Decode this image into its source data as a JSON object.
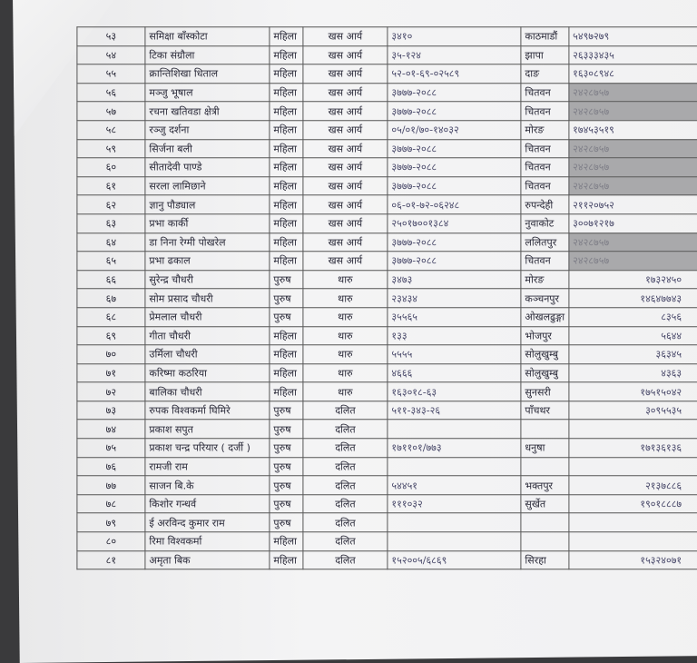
{
  "colors": {
    "shaded_cell": "#a9a9ab",
    "paper": "#f1f1f2"
  },
  "rows": [
    {
      "sn": "५३",
      "name": "समिक्षा  बाँस्कोटा",
      "gender": "महिला",
      "caste": "खस आर्य",
      "id": "३४१०",
      "district": "काठमाडौं",
      "phone": "५४९७२७९",
      "shaded": false
    },
    {
      "sn": "५४",
      "name": "टिका संग्रौला",
      "gender": "महिला",
      "caste": "खस आर्य",
      "id": "३५-१२४",
      "district": "झापा",
      "phone": "२६३३३४३५",
      "shaded": false
    },
    {
      "sn": "५५",
      "name": "क्रान्तिशिखा धिताल",
      "gender": "महिला",
      "caste": "खस आर्य",
      "id": "५२-०१-६९-०२५८९",
      "district": "दाङ",
      "phone": "१६३०८९४८",
      "shaded": false
    },
    {
      "sn": "५६",
      "name": "मञ्जु भूषाल",
      "gender": "महिला",
      "caste": "खस आर्य",
      "id": "३७७७-२०८८",
      "district": "चितवन",
      "phone": "२४२८७५७",
      "shaded": true
    },
    {
      "sn": "५७",
      "name": "रचना खतिवडा क्षेत्री",
      "gender": "महिला",
      "caste": "खस आर्य",
      "id": "३७७७-२०८८",
      "district": "चितवन",
      "phone": "२४२८७५७",
      "shaded": true
    },
    {
      "sn": "५८",
      "name": "रञ्जु दर्शना",
      "gender": "महिला",
      "caste": "खस आर्य",
      "id": "०५/०१/७०-१४०३२",
      "district": "मोरङ",
      "phone": "१७४५३५१९",
      "shaded": false
    },
    {
      "sn": "५९",
      "name": "सिर्जना बली",
      "gender": "महिला",
      "caste": "खस आर्य",
      "id": "३७७७-२०८८",
      "district": "चितवन",
      "phone": "२४२८७५७",
      "shaded": true
    },
    {
      "sn": "६०",
      "name": "सीतादेवी पाण्डे",
      "gender": "महिला",
      "caste": "खस आर्य",
      "id": "३७७७-२०८८",
      "district": "चितवन",
      "phone": "२४२८७५७",
      "shaded": true
    },
    {
      "sn": "६१",
      "name": "सरला लामिछाने",
      "gender": "महिला",
      "caste": "खस आर्य",
      "id": "३७७७-२०८८",
      "district": "चितवन",
      "phone": "२४२८७५७",
      "shaded": true
    },
    {
      "sn": "६२",
      "name": "ज्ञानु पौड्याल",
      "gender": "महिला",
      "caste": "खस आर्य",
      "id": "०६-०१-७२-०६२४८",
      "district": "रुपन्देही",
      "phone": "२११२०७५२",
      "shaded": false
    },
    {
      "sn": "६३",
      "name": "प्रभा कार्की",
      "gender": "महिला",
      "caste": "खस आर्य",
      "id": "२५०१७००१३८४",
      "district": "नुवाकोट",
      "phone": "३००७१२१७",
      "shaded": false
    },
    {
      "sn": "६४",
      "name": "डा निना रेग्मी पोखरेल",
      "gender": "महिला",
      "caste": "खस आर्य",
      "id": "३७७७-२०८८",
      "district": "ललितपुर",
      "phone": "२४२८७५७",
      "shaded": true
    },
    {
      "sn": "६५",
      "name": "प्रभा ढकाल",
      "gender": "महिला",
      "caste": "खस आर्य",
      "id": "३७७७-२०८८",
      "district": "चितवन",
      "phone": "२४२८७५७",
      "shaded": true
    },
    {
      "sn": "६६",
      "name": "सुरेन्द्र चौधरी",
      "gender": "पुरुष",
      "caste": "थारु",
      "id": "३४७३",
      "district": "मोरङ",
      "phone": "१७३२४५०",
      "shaded": false
    },
    {
      "sn": "६७",
      "name": "सोम प्रसाद चौधरी",
      "gender": "पुरुष",
      "caste": "थारु",
      "id": "२३४३४",
      "district": "कञ्चनपुर",
      "phone": "१४६४७७४३",
      "shaded": false
    },
    {
      "sn": "६८",
      "name": "प्रेमलाल चौधरी",
      "gender": "पुरुष",
      "caste": "थारु",
      "id": "३५५६५",
      "district": "ओखलढुङ्गा",
      "phone": "८३५६",
      "shaded": false
    },
    {
      "sn": "६९",
      "name": "गीता चौधरी",
      "gender": "महिला",
      "caste": "थारु",
      "id": "१३३",
      "district": "भोजपुर",
      "phone": "५६४४",
      "shaded": false
    },
    {
      "sn": "७०",
      "name": "उर्मिला चौधरी",
      "gender": "महिला",
      "caste": "थारु",
      "id": "५५५५",
      "district": "सोलुखुम्बु",
      "phone": "३६३४५",
      "shaded": false
    },
    {
      "sn": "७१",
      "name": "करिष्मा कठरिया",
      "gender": "महिला",
      "caste": "थारु",
      "id": "४६६६",
      "district": "सोलुखुम्बु",
      "phone": "४३६३",
      "shaded": false
    },
    {
      "sn": "७२",
      "name": "बालिका चौधरी",
      "gender": "महिला",
      "caste": "थारु",
      "id": "१६३०१८-६३",
      "district": "सुनसरी",
      "phone": "१७५१५०४२",
      "shaded": false
    },
    {
      "sn": "७३",
      "name": "रुपक विश्वकर्मा घिमिरे",
      "gender": "पुरुष",
      "caste": "दलित",
      "id": "५११-३४३-२६",
      "district": "पाँचथर",
      "phone": "३०९५५३५",
      "shaded": false
    },
    {
      "sn": "७४",
      "name": "प्रकाश सपुत",
      "gender": "पुरुष",
      "caste": "दलित",
      "id": "",
      "district": "",
      "phone": "",
      "shaded": false
    },
    {
      "sn": "७५",
      "name": "प्रकाश चन्द्र परियार ( दर्जी )",
      "gender": "पुरुष",
      "caste": "दलित",
      "id": "१७११०१/७७३",
      "district": "धनुषा",
      "phone": "१७१३६१३६",
      "shaded": false
    },
    {
      "sn": "७६",
      "name": "रामजी राम",
      "gender": "पुरुष",
      "caste": "दलित",
      "id": "",
      "district": "",
      "phone": "",
      "shaded": false
    },
    {
      "sn": "७७",
      "name": "साजन बि.के",
      "gender": "पुरुष",
      "caste": "दलित",
      "id": "५४४५१",
      "district": "भक्तपुर",
      "phone": "२१३७८८६",
      "shaded": false
    },
    {
      "sn": "७८",
      "name": "किशोर गन्धर्व",
      "gender": "पुरुष",
      "caste": "दलित",
      "id": "१११०३२",
      "district": "सुर्खेत",
      "phone": "१९०१८८८७",
      "shaded": false
    },
    {
      "sn": "७९",
      "name": "ई अरविन्द कुमार राम",
      "gender": "पुरुष",
      "caste": "दलित",
      "id": "",
      "district": "",
      "phone": "",
      "shaded": false
    },
    {
      "sn": "८०",
      "name": "रिमा विश्वकर्मा",
      "gender": "महिला",
      "caste": "दलित",
      "id": "",
      "district": "",
      "phone": "",
      "shaded": false
    },
    {
      "sn": "८१",
      "name": "अमृता बिक",
      "gender": "महिला",
      "caste": "दलित",
      "id": "१५२००५/६८६९",
      "district": "सिरहा",
      "phone": "१५३२४०७१",
      "shaded": false
    }
  ]
}
